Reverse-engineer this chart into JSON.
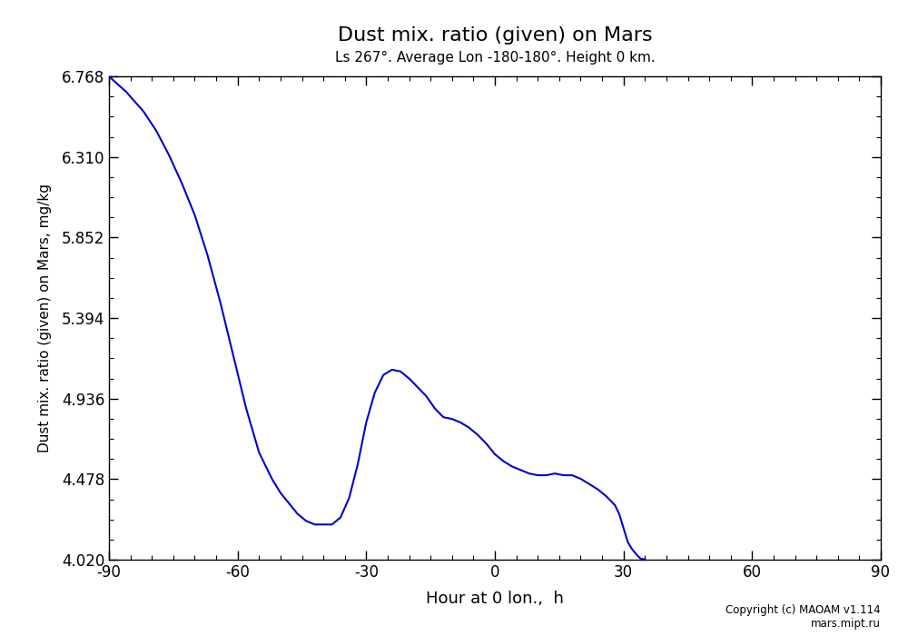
{
  "title": "Dust mix. ratio (given) on Mars",
  "subtitle": "Ls 267°. Average Lon -180-180°. Height 0 km.",
  "xlabel": "Hour at 0 lon.,  h",
  "ylabel": "Dust mix. ratio (given) on Mars, mg/kg",
  "xlim": [
    -90,
    90
  ],
  "ylim": [
    4.02,
    6.768
  ],
  "yticks": [
    4.02,
    4.478,
    4.936,
    5.394,
    5.852,
    6.31,
    6.768
  ],
  "xticks": [
    -90,
    -60,
    -30,
    0,
    30,
    60,
    90
  ],
  "line_color": "#0000cc",
  "copyright": "Copyright (c) MAOAM v1.114\nmars.mipt.ru",
  "x_data": [
    -90,
    -86,
    -82,
    -79,
    -76,
    -73,
    -70,
    -67,
    -64,
    -61,
    -58,
    -55,
    -52,
    -50,
    -48,
    -46,
    -44,
    -42,
    -40,
    -38,
    -36,
    -34,
    -32,
    -30,
    -28,
    -26,
    -24,
    -22,
    -20,
    -18,
    -16,
    -14,
    -12,
    -10,
    -8,
    -6,
    -4,
    -2,
    0,
    2,
    4,
    6,
    8,
    10,
    12,
    14,
    16,
    18,
    20,
    22,
    24,
    26,
    28,
    29,
    30,
    31,
    32,
    33,
    34,
    35
  ],
  "y_data": [
    6.768,
    6.68,
    6.57,
    6.46,
    6.32,
    6.16,
    5.98,
    5.75,
    5.48,
    5.18,
    4.88,
    4.63,
    4.48,
    4.4,
    4.34,
    4.28,
    4.24,
    4.22,
    4.22,
    4.22,
    4.26,
    4.37,
    4.56,
    4.8,
    4.97,
    5.07,
    5.1,
    5.09,
    5.05,
    5.0,
    4.95,
    4.88,
    4.83,
    4.82,
    4.8,
    4.77,
    4.73,
    4.68,
    4.62,
    4.58,
    4.55,
    4.53,
    4.51,
    4.5,
    4.5,
    4.51,
    4.5,
    4.5,
    4.48,
    4.45,
    4.42,
    4.38,
    4.33,
    4.28,
    4.2,
    4.12,
    4.08,
    4.05,
    4.025,
    4.022
  ]
}
